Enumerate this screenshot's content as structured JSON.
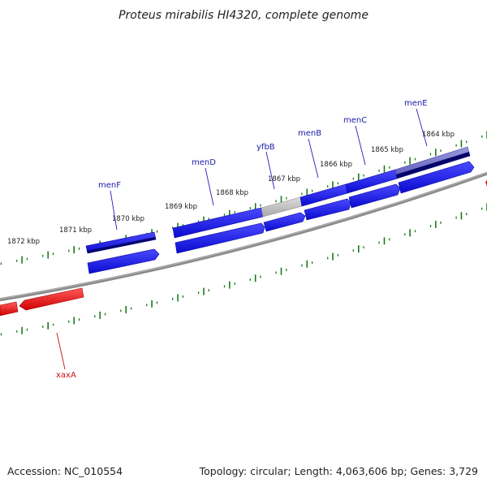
{
  "title": "Proteus mirabilis HI4320, complete genome",
  "footer": {
    "accession": "Accession: NC_010554",
    "topology": "Topology: circular; Length: 4,063,606 bp; Genes: 3,729"
  },
  "colors": {
    "backbone": "#8a8a8a",
    "forward_gene": "#1010e0",
    "forward_gene_dark": "#05056a",
    "reverse_gene": "#e01010",
    "pseudo_gene": "#b8b8b8",
    "highlight_gene": "#7070c8",
    "tick": "#1a7a1a"
  },
  "kbp_labels": [
    "1872 kbp",
    "1871 kbp",
    "1870 kbp",
    "1869 kbp",
    "1868 kbp",
    "1867 kbp",
    "1866 kbp",
    "1865 kbp",
    "1864 kbp"
  ],
  "genes": [
    {
      "name": "menF",
      "strand": "+"
    },
    {
      "name": "menD",
      "strand": "+"
    },
    {
      "name": "yfbB",
      "strand": "+"
    },
    {
      "name": "menB",
      "strand": "+"
    },
    {
      "name": "menC",
      "strand": "+"
    },
    {
      "name": "menE",
      "strand": "+"
    },
    {
      "name": "xaxA",
      "strand": "-"
    }
  ]
}
